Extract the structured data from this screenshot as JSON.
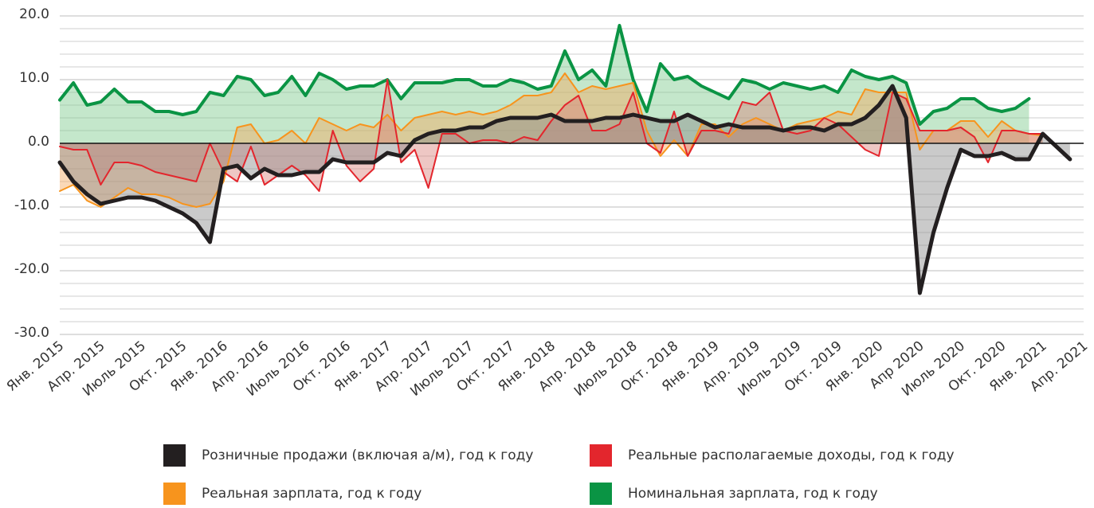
{
  "chart_data": {
    "type": "line",
    "categories": [
      "Янв. 2015",
      null,
      null,
      "Апр. 2015",
      null,
      null,
      "Июль 2015",
      null,
      null,
      "Окт. 2015",
      null,
      null,
      "Янв. 2016",
      null,
      null,
      "Апр. 2016",
      null,
      null,
      "Июль 2016",
      null,
      null,
      "Окт. 2016",
      null,
      null,
      "Янв. 2017",
      null,
      null,
      "Апр. 2017",
      null,
      null,
      "Июль 2017",
      null,
      null,
      "Окт. 2017",
      null,
      null,
      "Янв. 2018",
      null,
      null,
      "Апр. 2018",
      null,
      null,
      "Июль 2018",
      null,
      null,
      "Окт. 2018",
      null,
      null,
      "Янв. 2019",
      null,
      null,
      "Апр. 2019",
      null,
      null,
      "Июль 2019",
      null,
      null,
      "Окт. 2019",
      null,
      null,
      "Янв. 2020",
      null,
      null,
      "Апр 2020",
      null,
      null,
      "Июль 2020",
      null,
      null,
      "Окт. 2020",
      null,
      null,
      "Янв. 2021",
      null,
      null,
      "Апр. 2021"
    ],
    "series": [
      {
        "name": "Розничные продажи (включая а/м), год к году",
        "color": "#231f20",
        "fill": "#8a8a8a",
        "values": [
          -3,
          -6,
          -8,
          -9.5,
          -9,
          -8.5,
          -8.5,
          -9,
          -10,
          -11,
          -12.5,
          -15.5,
          -4,
          -3.5,
          -5.5,
          -4,
          -5,
          -5,
          -4.5,
          -4.5,
          -2.5,
          -3,
          -3,
          -3,
          -1.5,
          -2,
          0.5,
          1.5,
          2,
          2,
          2.5,
          2.5,
          3.5,
          4,
          4,
          4,
          4.5,
          3.5,
          3.5,
          3.5,
          4,
          4,
          4.5,
          4,
          3.5,
          3.5,
          4.5,
          3.5,
          2.5,
          3,
          2.5,
          2.5,
          2.5,
          2,
          2.5,
          2.5,
          2,
          3,
          3,
          4,
          6,
          9,
          4,
          -23.5,
          -14,
          -7,
          -1,
          -2,
          -2,
          -1.5,
          -2.5,
          -2.5,
          1.5,
          -0.5,
          -2.5,
          null
        ]
      },
      {
        "name": "Реальные располагаемые доходы, год к году",
        "color": "#e3262d",
        "fill": "#d9827d",
        "values": [
          -0.5,
          -1,
          -1,
          -6.5,
          -3,
          -3,
          -3.5,
          -4.5,
          -5,
          -5.5,
          -6,
          0,
          -4.5,
          -6,
          -0.5,
          -6.5,
          -5,
          -3.5,
          -5,
          -7.5,
          2,
          -3.5,
          -6,
          -4,
          10,
          -3,
          -1,
          -7,
          1.5,
          1.5,
          0,
          0.5,
          0.5,
          0,
          1,
          0.5,
          3.5,
          6,
          7.5,
          2,
          2,
          3,
          8,
          0,
          -1.5,
          5,
          -2,
          2,
          2,
          1.5,
          6.5,
          6,
          8,
          2,
          1.5,
          2,
          4,
          3,
          1,
          -1,
          -2,
          8,
          7,
          2,
          2,
          2,
          2.5,
          1,
          -3,
          2,
          2,
          1.5,
          1.5,
          null,
          null,
          null
        ]
      },
      {
        "name": "Реальная зарплата, год к году",
        "color": "#f7941d",
        "fill": "#f4a860",
        "values": [
          -7.5,
          -6.5,
          -9,
          -10,
          -8.5,
          -7,
          -8,
          -8,
          -8.5,
          -9.5,
          -10,
          -9.5,
          -6,
          2.5,
          3,
          0,
          0.5,
          2,
          0,
          4,
          3,
          2,
          3,
          2.5,
          4.5,
          2,
          4,
          4.5,
          5,
          4.5,
          5,
          4.5,
          5,
          6,
          7.5,
          7.5,
          8,
          11,
          8,
          9,
          8.5,
          9,
          9.5,
          2,
          -2,
          0.5,
          -2,
          3,
          3,
          1,
          3,
          4,
          3,
          2,
          3,
          3.5,
          4,
          5,
          4.5,
          8.5,
          8,
          8,
          8,
          -1,
          2,
          2,
          3.5,
          3.5,
          1,
          3.5,
          2,
          1.5,
          1.2,
          null,
          null,
          null
        ]
      },
      {
        "name": "Номинальная зарплата, год к году",
        "color": "#0a9444",
        "fill": "#7cc98c",
        "values": [
          6.8,
          9.5,
          6,
          6.5,
          8.5,
          6.5,
          6.5,
          5,
          5,
          4.5,
          5,
          8,
          7.5,
          10.5,
          10,
          7.5,
          8,
          10.5,
          7.5,
          11,
          10,
          8.5,
          9,
          9,
          10,
          7,
          9.5,
          9.5,
          9.5,
          10,
          10,
          9,
          9,
          10,
          9.5,
          8.5,
          9,
          14.5,
          10,
          11.5,
          9,
          18.5,
          10,
          5,
          12.5,
          10,
          10.5,
          9,
          8,
          7,
          10,
          9.5,
          8.5,
          9.5,
          9,
          8.5,
          9,
          8,
          11.5,
          10.5,
          10,
          10.5,
          9.5,
          3,
          5,
          5.5,
          7,
          7,
          5.5,
          5,
          5.5,
          7,
          null,
          null,
          null,
          null
        ]
      }
    ],
    "ylim": [
      -30,
      20
    ],
    "yticks": [
      {
        "value": -30,
        "label": "-30.0"
      },
      {
        "value": -20,
        "label": "-20.0"
      },
      {
        "value": -10,
        "label": "-10.0"
      },
      {
        "value": 0,
        "label": "0.0"
      },
      {
        "value": 10,
        "label": "10.0"
      },
      {
        "value": 20,
        "label": "20.0"
      }
    ],
    "minor_yticks": [
      -28,
      -26,
      -24,
      -22,
      -18,
      -16,
      -14,
      -12,
      -8,
      -6,
      -4,
      -2,
      2,
      4,
      6,
      8,
      12,
      14,
      16,
      18
    ],
    "grid": true,
    "legend": "bottom"
  }
}
